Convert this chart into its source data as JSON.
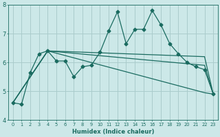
{
  "xlabel": "Humidex (Indice chaleur)",
  "ylabel": "",
  "xlim": [
    -0.5,
    23.5
  ],
  "ylim": [
    4,
    8
  ],
  "yticks": [
    4,
    5,
    6,
    7,
    8
  ],
  "xticks": [
    0,
    1,
    2,
    3,
    4,
    5,
    6,
    7,
    8,
    9,
    10,
    11,
    12,
    13,
    14,
    15,
    16,
    17,
    18,
    19,
    20,
    21,
    22,
    23
  ],
  "bg_color": "#cce8e8",
  "grid_color": "#aacccc",
  "line_color": "#1a6b60",
  "lines": [
    {
      "x": [
        0,
        1,
        2,
        3,
        4,
        5,
        6,
        7,
        8,
        9,
        10,
        11,
        12,
        13,
        14,
        15,
        16,
        17,
        18,
        19,
        20,
        21,
        22,
        23
      ],
      "y": [
        4.6,
        4.55,
        5.65,
        6.3,
        6.4,
        6.05,
        6.05,
        5.5,
        5.85,
        5.9,
        6.35,
        7.1,
        7.75,
        6.65,
        7.15,
        7.15,
        7.8,
        7.3,
        6.65,
        6.3,
        6.0,
        5.85,
        5.75,
        4.9
      ],
      "marker": "D",
      "markersize": 2.5
    },
    {
      "x": [
        0,
        4,
        22,
        23
      ],
      "y": [
        4.6,
        6.4,
        6.2,
        4.9
      ],
      "marker": null,
      "markersize": 0
    },
    {
      "x": [
        0,
        4,
        22,
        23
      ],
      "y": [
        4.6,
        6.4,
        5.9,
        4.9
      ],
      "marker": null,
      "markersize": 0
    },
    {
      "x": [
        0,
        4,
        22,
        23
      ],
      "y": [
        4.6,
        6.4,
        4.95,
        4.9
      ],
      "marker": null,
      "markersize": 0
    }
  ]
}
